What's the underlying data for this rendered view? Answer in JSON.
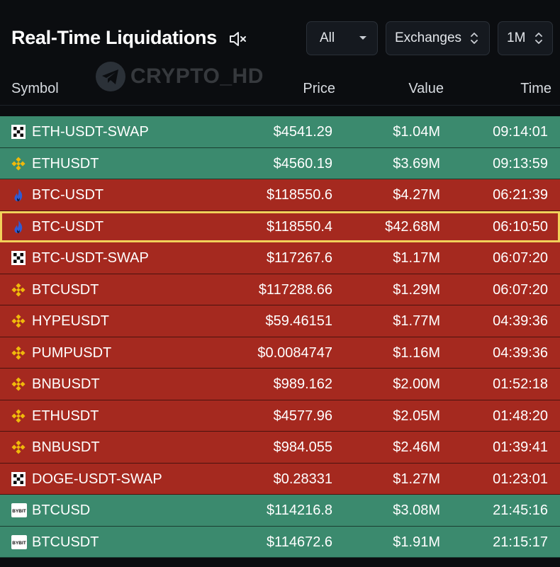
{
  "header": {
    "title": "Real-Time Liquidations",
    "mute_icon": "speaker-muted-icon",
    "filter_side": "All",
    "filter_exchange": "Exchanges",
    "filter_period": "1M"
  },
  "watermark": {
    "text": "CRYPTO_HD",
    "icon": "telegram-icon"
  },
  "columns": {
    "symbol": "Symbol",
    "price": "Price",
    "value": "Value",
    "time": "Time"
  },
  "colors": {
    "long_row": "#3b8a6e",
    "short_row": "#a5291f",
    "highlight": "#f2d15a"
  },
  "rows": [
    {
      "exchange": "okx",
      "icon": "okx-logo-icon",
      "symbol": "ETH-USDT-SWAP",
      "price": "$4541.29",
      "value": "$1.04M",
      "time": "09:14:01",
      "side": "green"
    },
    {
      "exchange": "binance",
      "icon": "binance-logo-icon",
      "symbol": "ETHUSDT",
      "price": "$4560.19",
      "value": "$3.69M",
      "time": "09:13:59",
      "side": "green"
    },
    {
      "exchange": "htx",
      "icon": "htx-logo-icon",
      "symbol": "BTC-USDT",
      "price": "$118550.6",
      "value": "$4.27M",
      "time": "06:21:39",
      "side": "red"
    },
    {
      "exchange": "htx",
      "icon": "htx-logo-icon",
      "symbol": "BTC-USDT",
      "price": "$118550.4",
      "value": "$42.68M",
      "time": "06:10:50",
      "side": "red",
      "highlighted": true
    },
    {
      "exchange": "okx",
      "icon": "okx-logo-icon",
      "symbol": "BTC-USDT-SWAP",
      "price": "$117267.6",
      "value": "$1.17M",
      "time": "06:07:20",
      "side": "red"
    },
    {
      "exchange": "binance",
      "icon": "binance-logo-icon",
      "symbol": "BTCUSDT",
      "price": "$117288.66",
      "value": "$1.29M",
      "time": "06:07:20",
      "side": "red"
    },
    {
      "exchange": "binance",
      "icon": "binance-logo-icon",
      "symbol": "HYPEUSDT",
      "price": "$59.46151",
      "value": "$1.77M",
      "time": "04:39:36",
      "side": "red"
    },
    {
      "exchange": "binance",
      "icon": "binance-logo-icon",
      "symbol": "PUMPUSDT",
      "price": "$0.0084747",
      "value": "$1.16M",
      "time": "04:39:36",
      "side": "red"
    },
    {
      "exchange": "binance",
      "icon": "binance-logo-icon",
      "symbol": "BNBUSDT",
      "price": "$989.162",
      "value": "$2.00M",
      "time": "01:52:18",
      "side": "red"
    },
    {
      "exchange": "binance",
      "icon": "binance-logo-icon",
      "symbol": "ETHUSDT",
      "price": "$4577.96",
      "value": "$2.05M",
      "time": "01:48:20",
      "side": "red"
    },
    {
      "exchange": "binance",
      "icon": "binance-logo-icon",
      "symbol": "BNBUSDT",
      "price": "$984.055",
      "value": "$2.46M",
      "time": "01:39:41",
      "side": "red"
    },
    {
      "exchange": "okx",
      "icon": "okx-logo-icon",
      "symbol": "DOGE-USDT-SWAP",
      "price": "$0.28331",
      "value": "$1.27M",
      "time": "01:23:01",
      "side": "red"
    },
    {
      "exchange": "bybit",
      "icon": "bybit-logo-icon",
      "symbol": "BTCUSD",
      "price": "$114216.8",
      "value": "$3.08M",
      "time": "21:45:16",
      "side": "green"
    },
    {
      "exchange": "bybit",
      "icon": "bybit-logo-icon",
      "symbol": "BTCUSDT",
      "price": "$114672.6",
      "value": "$1.91M",
      "time": "21:15:17",
      "side": "green"
    }
  ]
}
